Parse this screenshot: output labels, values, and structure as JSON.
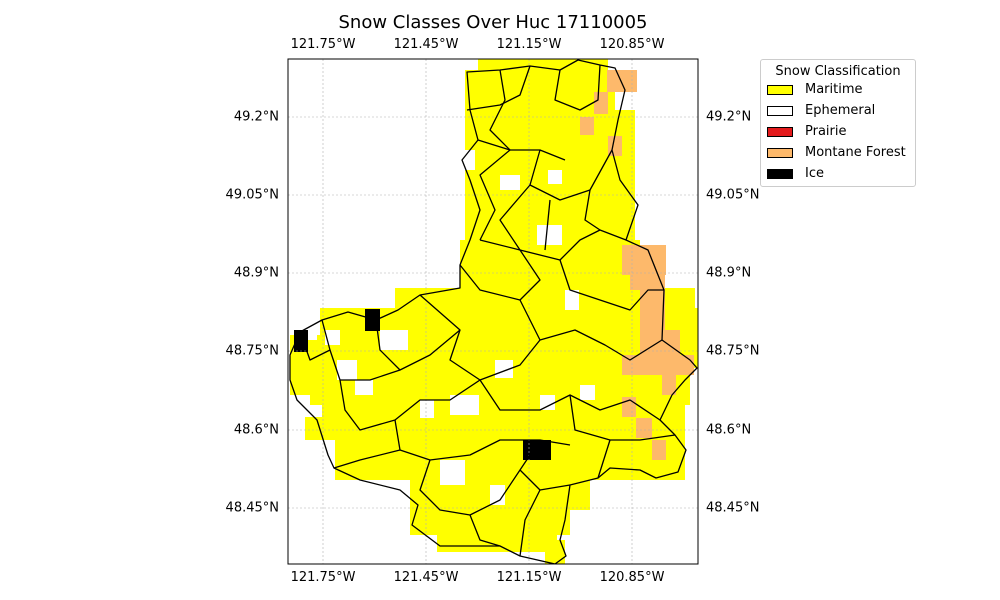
{
  "title": "Snow Classes Over Huc 17110005",
  "lon_ticks": [
    "121.75°W",
    "121.45°W",
    "121.15°W",
    "120.85°W"
  ],
  "lat_ticks": [
    "49.2°N",
    "49.05°N",
    "48.9°N",
    "48.75°N",
    "48.6°N",
    "48.45°N"
  ],
  "legend": {
    "title": "Snow Classification",
    "items": [
      {
        "label": "Maritime",
        "color": "#ffff00"
      },
      {
        "label": "Ephemeral",
        "color": "#ffffff"
      },
      {
        "label": "Prairie",
        "color": "#e41a1c"
      },
      {
        "label": "Montane Forest",
        "color": "#fdb96b"
      },
      {
        "label": "Ice",
        "color": "#000000"
      }
    ]
  },
  "colors": {
    "maritime": "#ffff00",
    "montane_forest": "#fdb96b",
    "ice": "#000000",
    "boundary": "#000000",
    "grid": "#b0b0b0"
  }
}
